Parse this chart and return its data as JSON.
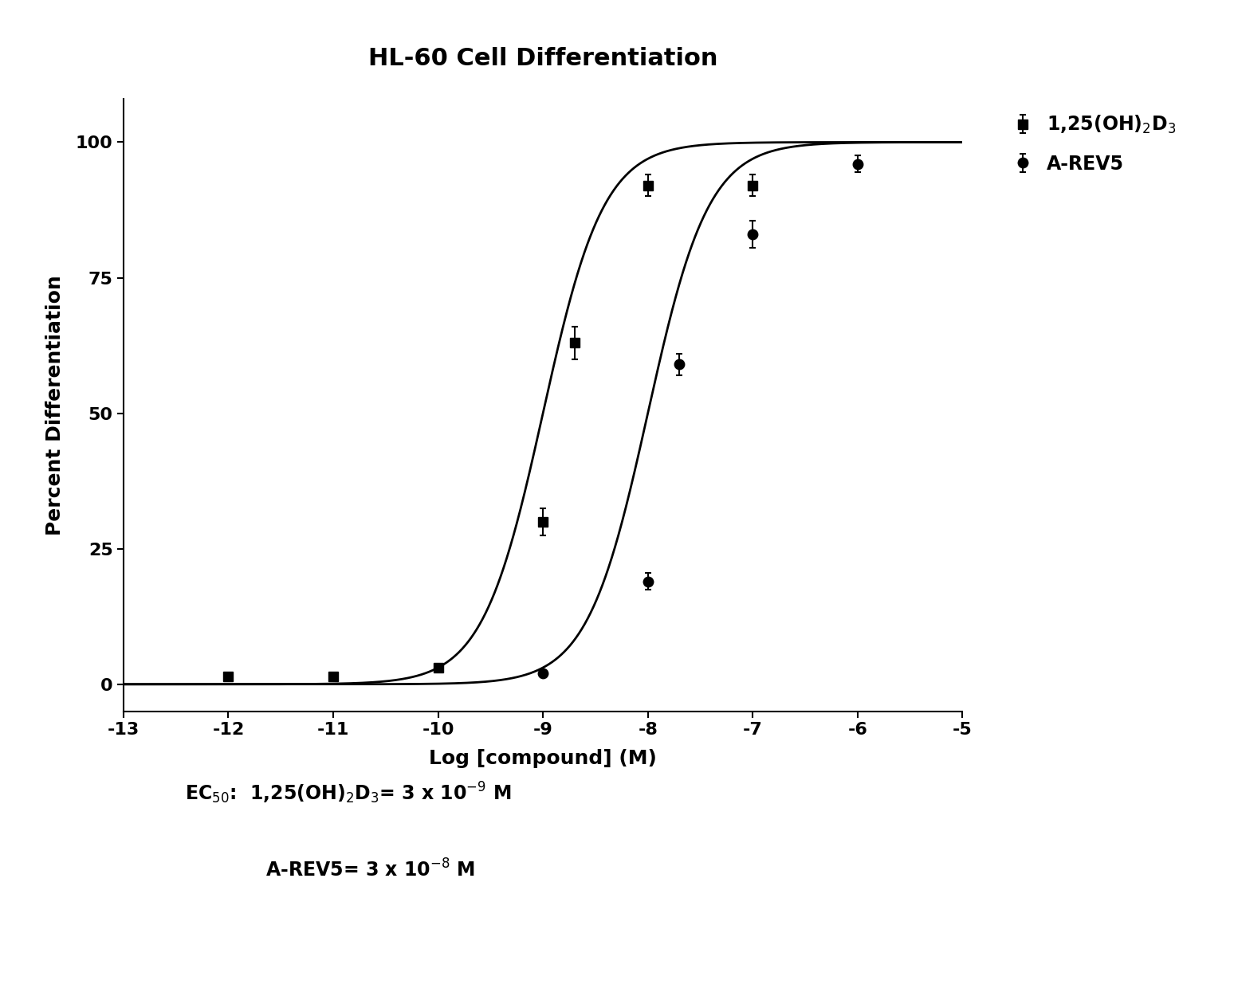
{
  "title": "HL-60 Cell Differentiation",
  "xlabel": "Log [compound] (M)",
  "ylabel": "Percent Differentiation",
  "xlim": [
    -13,
    -5
  ],
  "ylim": [
    -5,
    108
  ],
  "xticks": [
    -13,
    -12,
    -11,
    -10,
    -9,
    -8,
    -7,
    -6,
    -5
  ],
  "yticks": [
    0,
    25,
    50,
    75,
    100
  ],
  "background_color": "#ffffff",
  "series1_name": "1,25(OH)$_2$D$_3$",
  "series2_name": "A-REV5",
  "series1_x": [
    -12,
    -11,
    -10,
    -9,
    -8.7,
    -8,
    -7
  ],
  "series1_y": [
    1.5,
    1.5,
    3,
    30,
    63,
    92,
    92
  ],
  "series1_yerr": [
    0.5,
    0.5,
    0.5,
    2.5,
    3,
    2,
    2
  ],
  "series2_x": [
    -9,
    -8,
    -7.7,
    -7,
    -6
  ],
  "series2_y": [
    2,
    19,
    59,
    83,
    96
  ],
  "series2_yerr": [
    0.5,
    1.5,
    2,
    2.5,
    1.5
  ],
  "ec50_1": -9.0,
  "ec50_2": -8.0,
  "hill1": 1.5,
  "hill2": 1.5,
  "top1": 100,
  "top2": 100,
  "curve_color": "#000000",
  "marker_color": "#000000",
  "title_fontsize": 22,
  "axis_label_fontsize": 18,
  "tick_fontsize": 16,
  "legend_fontsize": 17,
  "annotation_fontsize": 17
}
